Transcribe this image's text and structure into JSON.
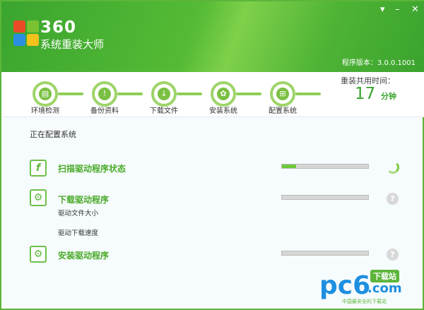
{
  "app": {
    "brand_number": "360",
    "brand_name": "系统重装大师",
    "version": "程序版本：3.0.0.1001"
  },
  "window_controls": [
    "menu",
    "minimize",
    "close"
  ],
  "steps": [
    {
      "label": "环境检测",
      "icon": "computer-icon"
    },
    {
      "label": "备份资料",
      "icon": "backup-icon"
    },
    {
      "label": "下载文件",
      "icon": "download-icon"
    },
    {
      "label": "安装系统",
      "icon": "install-icon"
    },
    {
      "label": "配置系统",
      "icon": "windows-config-icon"
    }
  ],
  "timer": {
    "label": "重装共用时间：",
    "value": "17",
    "unit": "分钟"
  },
  "status": "正在配置系统",
  "tasks": [
    {
      "title": "扫描驱动程序状态",
      "progress": 0.16,
      "state": "running",
      "icon": "flash-icon"
    },
    {
      "title": "下载驱动程序",
      "progress": 0,
      "state": "pending",
      "icon": "gear-icon",
      "details": [
        "驱动文件大小",
        "驱动下载速度"
      ]
    },
    {
      "title": "安装驱动程序",
      "progress": 0,
      "state": "pending",
      "icon": "gear-icon"
    }
  ],
  "watermark": {
    "logo": "pc6",
    "badge": "下载站",
    "domain": ".com",
    "slogan": "中国最安全的下载站"
  },
  "colors": {
    "accent": "#5cb53a",
    "progress": "#6cc93b"
  }
}
